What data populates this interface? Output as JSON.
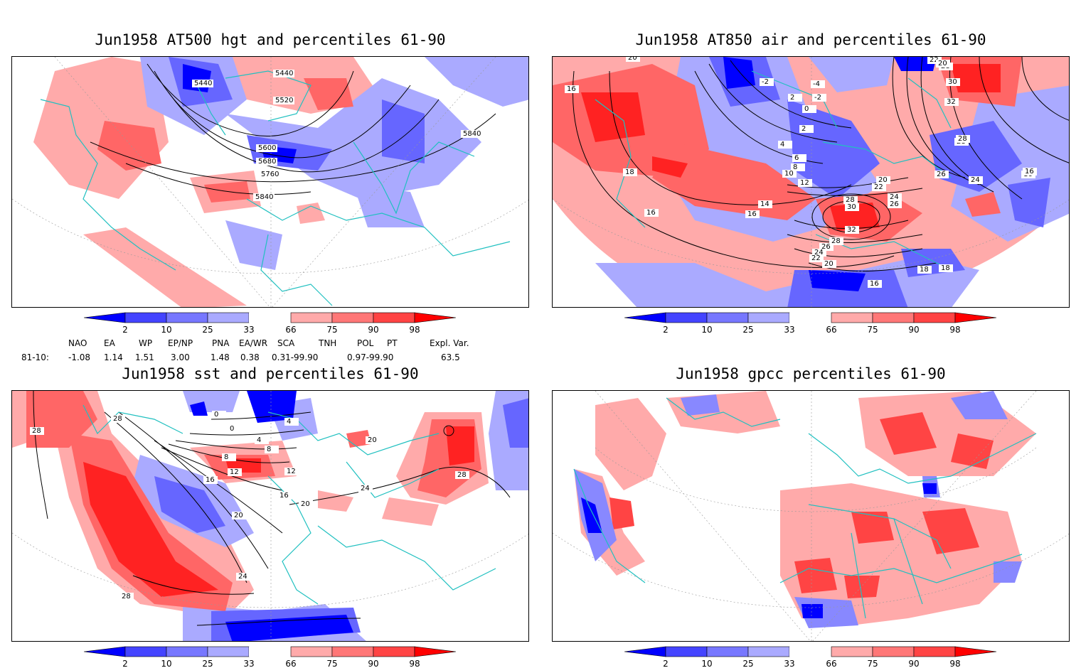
{
  "panels": [
    {
      "title": "Jun1958 AT500 hgt and percentiles 61-90",
      "contour_labels": [
        "5440",
        "5440",
        "5520",
        "5600",
        "5680",
        "5760",
        "5840",
        "5840"
      ]
    },
    {
      "title": "Jun1958 AT850 air and percentiles 61-90",
      "contour_labels": [
        "20",
        "16",
        "18",
        "16",
        "-2",
        "2",
        "-4",
        "-2",
        "0",
        "2",
        "4",
        "6",
        "8",
        "10",
        "12",
        "14",
        "16",
        "20",
        "22",
        "24",
        "26",
        "28",
        "30",
        "32",
        "28",
        "26",
        "24",
        "22",
        "20",
        "18",
        "16",
        "16",
        "28",
        "26",
        "24",
        "28",
        "30",
        "32",
        "22",
        "20",
        "28",
        "18",
        "16"
      ]
    },
    {
      "title": "Jun1958 sst and percentiles 61-90",
      "contour_labels": [
        "28",
        "28",
        "0",
        "0",
        "4",
        "4",
        "8",
        "8",
        "12",
        "12",
        "16",
        "16",
        "20",
        "20",
        "24",
        "28",
        "28",
        "24",
        "20"
      ]
    },
    {
      "title": "Jun1958 gpcc percentiles 61-90",
      "contour_labels": []
    }
  ],
  "colorbar": {
    "labels": [
      "2",
      "10",
      "25",
      "33",
      "66",
      "75",
      "90",
      "98"
    ],
    "colors": [
      "#0000ff",
      "#4444ff",
      "#7777ff",
      "#aaaaff",
      "#ffffff",
      "#ffaaaa",
      "#ff7777",
      "#ff4444",
      "#ff0000"
    ]
  },
  "teleconnections": {
    "headers": [
      "NAO",
      "EA",
      "WP",
      "EP/NP",
      "PNA",
      "EA/WR",
      "SCA",
      "TNH",
      "POL",
      "PT",
      "Expl. Var."
    ],
    "row_label": "81-10:",
    "values": [
      "-1.08",
      "1.14",
      "1.51",
      "3.00",
      "1.48",
      "0.38",
      "0.31-99.90",
      "0.97-99.90",
      "63.5"
    ]
  },
  "colors": {
    "coast": "#20c0c0",
    "red_light": "#ffaaaa",
    "red_mid": "#ff6666",
    "red_dark": "#ff2222",
    "blue_light": "#aaaaff",
    "blue_mid": "#6666ff",
    "blue_dark": "#0000ff"
  }
}
